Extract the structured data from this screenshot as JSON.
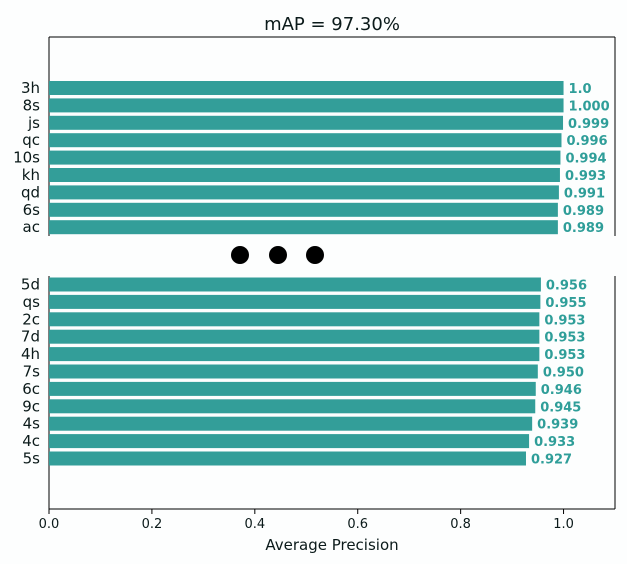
{
  "chart_data": {
    "type": "bar",
    "orientation": "horizontal",
    "title": "mAP = 97.30%",
    "xlabel": "Average Precision",
    "xlim": [
      0,
      1.1
    ],
    "xticks": [
      0.0,
      0.2,
      0.4,
      0.6,
      0.8,
      1.0
    ],
    "xtick_labels": [
      "0.0",
      "0.2",
      "0.4",
      "0.6",
      "0.8",
      "1.0"
    ],
    "bar_color": "#339e99",
    "label_color": "#2f9e99",
    "break_marker": "three-dots",
    "panels": [
      {
        "categories": [
          "3h",
          "8s",
          "js",
          "qc",
          "10s",
          "kh",
          "qd",
          "6s",
          "ac"
        ],
        "values": [
          1.0,
          1.0,
          0.999,
          0.996,
          0.994,
          0.993,
          0.991,
          0.989,
          0.989
        ],
        "value_labels": [
          "1.0",
          "1.000",
          "0.999",
          "0.996",
          "0.994",
          "0.993",
          "0.991",
          "0.989",
          "0.989"
        ]
      },
      {
        "categories": [
          "5d",
          "qs",
          "2c",
          "7d",
          "4h",
          "7s",
          "6c",
          "9c",
          "4s",
          "4c",
          "5s"
        ],
        "values": [
          0.956,
          0.955,
          0.953,
          0.953,
          0.953,
          0.95,
          0.946,
          0.945,
          0.939,
          0.933,
          0.927
        ],
        "value_labels": [
          "0.956",
          "0.955",
          "0.953",
          "0.953",
          "0.953",
          "0.950",
          "0.946",
          "0.945",
          "0.939",
          "0.933",
          "0.927"
        ]
      }
    ]
  }
}
